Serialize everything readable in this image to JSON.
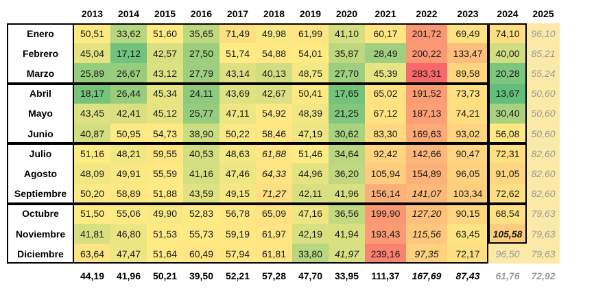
{
  "years": [
    "2013",
    "2014",
    "2015",
    "2016",
    "2017",
    "2018",
    "2019",
    "2020",
    "2021",
    "2022",
    "2023",
    "2024",
    "2025"
  ],
  "months": [
    "Enero",
    "Febrero",
    "Marzo",
    "Abril",
    "Mayo",
    "Junio",
    "Julio",
    "Agosto",
    "Septiembre",
    "Octubre",
    "Noviembre",
    "Diciembre"
  ],
  "rows": [
    [
      "50,51",
      "33,62",
      "51,60",
      "35,65",
      "71,49",
      "49,98",
      "61,99",
      "41,10",
      "60,17",
      "201,72",
      "69,49",
      "74,10",
      "96,10"
    ],
    [
      "45,04",
      "17,12",
      "42,57",
      "27,50",
      "51,74",
      "54,88",
      "54,01",
      "35,87",
      "28,49",
      "200,22",
      "133,47",
      "40,00",
      "85,21"
    ],
    [
      "25,89",
      "26,67",
      "43,12",
      "27,79",
      "43,14",
      "40,13",
      "48,75",
      "27,70",
      "45,39",
      "283,31",
      "89,58",
      "20,28",
      "55,24"
    ],
    [
      "18,17",
      "26,44",
      "45,34",
      "24,11",
      "43,69",
      "42,67",
      "50,41",
      "17,65",
      "65,02",
      "191,52",
      "73,73",
      "13,67",
      "50,60"
    ],
    [
      "43,45",
      "42,41",
      "45,12",
      "25,77",
      "47,11",
      "54,92",
      "48,39",
      "21,25",
      "67,12",
      "187,13",
      "74,21",
      "30,40",
      "50,60"
    ],
    [
      "40,87",
      "50,95",
      "54,73",
      "38,90",
      "50,22",
      "58,46",
      "47,19",
      "30,62",
      "83,30",
      "169,63",
      "93,02",
      "56,08",
      "50,60"
    ],
    [
      "51,16",
      "48,21",
      "59,55",
      "40,53",
      "48,63",
      "61,88",
      "51,46",
      "34,64",
      "92,42",
      "142,66",
      "90,47",
      "72,31",
      "82,60"
    ],
    [
      "48,09",
      "49,91",
      "55,59",
      "41,16",
      "47,46",
      "64,33",
      "44,96",
      "36,20",
      "105,94",
      "154,89",
      "96,05",
      "91,05",
      "82,60"
    ],
    [
      "50,20",
      "58,89",
      "51,88",
      "43,59",
      "49,15",
      "71,27",
      "42,11",
      "41,96",
      "156,14",
      "141,07",
      "103,34",
      "72,62",
      "82,60"
    ],
    [
      "51,50",
      "55,06",
      "49,90",
      "52,83",
      "56,78",
      "65,09",
      "47,16",
      "36,56",
      "199,90",
      "127,20",
      "90,15",
      "68,54",
      "79,63"
    ],
    [
      "41,81",
      "46,80",
      "51,53",
      "55,73",
      "59,19",
      "61,97",
      "42,19",
      "41,94",
      "193,43",
      "115,56",
      "63,45",
      "105,58",
      "79,63"
    ],
    [
      "63,64",
      "47,47",
      "51,64",
      "60,49",
      "57,94",
      "61,81",
      "33,80",
      "41,97",
      "239,16",
      "97,35",
      "72,17",
      "96,50",
      "79,63"
    ]
  ],
  "italic_cells": [
    [
      6,
      5
    ],
    [
      7,
      5
    ],
    [
      8,
      5
    ],
    [
      8,
      9
    ],
    [
      9,
      9
    ],
    [
      10,
      9
    ],
    [
      11,
      9
    ],
    [
      11,
      7
    ],
    [
      10,
      11
    ]
  ],
  "bold_cells": [
    [
      10,
      11
    ]
  ],
  "totals": [
    "44,19",
    "41,96",
    "50,21",
    "39,50",
    "52,21",
    "57,28",
    "47,70",
    "33,95",
    "111,37",
    "167,69",
    "87,43",
    "61,76",
    "72,92"
  ],
  "italic_totals": [
    9,
    10,
    11,
    12
  ],
  "grey_totals": [
    11,
    12
  ],
  "grey_cells": [
    [
      11,
      11
    ]
  ],
  "colors": {
    "low": "#63be7b",
    "mid": "#ffeb84",
    "high": "#f8696b",
    "forecast": "#fbe9a8",
    "forecast_text": "#9a9a9a"
  }
}
